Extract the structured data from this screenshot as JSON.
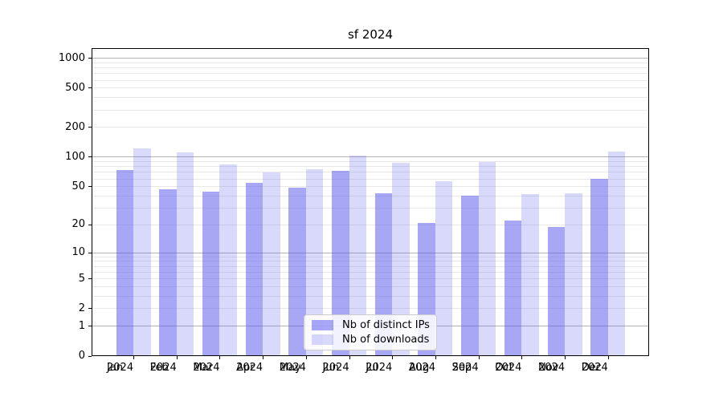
{
  "figure": {
    "background": "#ffffff"
  },
  "chart_data": {
    "type": "bar",
    "title": "sf 2024",
    "categories": [
      "Jan 2024",
      "Feb 2024",
      "Mar 2024",
      "Apr 2024",
      "May 2024",
      "Jun 2024",
      "Jul 2024",
      "Aug 2024",
      "Sep 2024",
      "Oct 2024",
      "Nov 2024",
      "Dec 2024"
    ],
    "series": [
      {
        "name": "Nb of distinct IPs",
        "color": "rgba(80,80,238,0.50)",
        "apparent_hex": "#a8a8f4",
        "values": [
          74,
          47,
          44,
          55,
          49,
          72,
          43,
          21,
          40,
          22,
          19,
          60
        ]
      },
      {
        "name": "Nb of downloads",
        "color": "rgba(80,80,238,0.22)",
        "apparent_hex": "#d8d8f8",
        "values": [
          122,
          112,
          84,
          70,
          75,
          104,
          87,
          57,
          90,
          42,
          43,
          114
        ]
      }
    ],
    "yscale": "log1p",
    "ylim": [
      0,
      1265
    ],
    "yticks": [
      1000,
      500,
      200,
      100,
      50,
      20,
      10,
      5,
      2,
      1,
      0
    ],
    "gridlines_major": [
      1,
      10,
      100,
      1000
    ],
    "gridlines_minor": [
      2,
      3,
      4,
      5,
      6,
      7,
      8,
      9,
      20,
      30,
      40,
      50,
      60,
      70,
      80,
      90,
      200,
      300,
      400,
      500,
      600,
      700,
      800,
      900
    ],
    "grid_color_major": "#b4b4b4",
    "grid_color_minor": "#e8e8e8",
    "legend_position": "lower center",
    "grid": "horizontal major+minor",
    "xlabel": "",
    "ylabel": ""
  }
}
